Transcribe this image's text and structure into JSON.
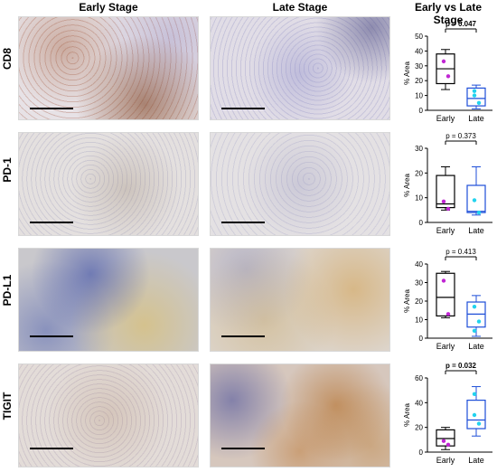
{
  "headers": {
    "early": "Early Stage",
    "late": "Late Stage",
    "comparison": "Early vs Late Stage"
  },
  "rows": [
    {
      "marker": "CD8"
    },
    {
      "marker": "PD-1"
    },
    {
      "marker": "PD-L1"
    },
    {
      "marker": "TIGIT"
    }
  ],
  "colors": {
    "early_points": "#c026d3",
    "late_points": "#22d3ee",
    "early_box": "#000000",
    "late_box": "#1d4ed8"
  },
  "chart_data": [
    {
      "type": "box",
      "marker": "CD8",
      "ylabel": "% Area",
      "ylim": [
        0,
        50
      ],
      "yticks": [
        0,
        10,
        20,
        30,
        40,
        50
      ],
      "categories": [
        "Early",
        "Late"
      ],
      "pvalue": "p = 0.047",
      "pvalue_bold": true,
      "boxes": [
        {
          "category": "Early",
          "min": 14,
          "q1": 18,
          "median": 28,
          "q3": 38,
          "max": 41,
          "points": [
            33,
            23
          ]
        },
        {
          "category": "Late",
          "min": 1,
          "q1": 3,
          "median": 8,
          "q3": 15,
          "max": 17,
          "points": [
            10,
            5,
            13
          ]
        }
      ]
    },
    {
      "type": "box",
      "marker": "PD-1",
      "ylabel": "% Area",
      "ylim": [
        0,
        30
      ],
      "yticks": [
        0,
        10,
        20,
        30
      ],
      "categories": [
        "Early",
        "Late"
      ],
      "pvalue": "p = 0.373",
      "pvalue_bold": false,
      "boxes": [
        {
          "category": "Early",
          "min": 5,
          "q1": 6,
          "median": 7.5,
          "q3": 19,
          "max": 22.5,
          "points": [
            8.5,
            5.5
          ]
        },
        {
          "category": "Late",
          "min": 3,
          "q1": 4,
          "median": 4.5,
          "q3": 15,
          "max": 22.5,
          "points": [
            9,
            4
          ]
        }
      ]
    },
    {
      "type": "box",
      "marker": "PD-L1",
      "ylabel": "% Area",
      "ylim": [
        0,
        40
      ],
      "yticks": [
        0,
        10,
        20,
        30,
        40
      ],
      "categories": [
        "Early",
        "Late"
      ],
      "pvalue": "p = 0.413",
      "pvalue_bold": false,
      "boxes": [
        {
          "category": "Early",
          "min": 11,
          "q1": 12,
          "median": 22,
          "q3": 35,
          "max": 36,
          "points": [
            31,
            13
          ]
        },
        {
          "category": "Late",
          "min": 1,
          "q1": 6,
          "median": 13,
          "q3": 19.5,
          "max": 23,
          "points": [
            17,
            9,
            4
          ]
        }
      ]
    },
    {
      "type": "box",
      "marker": "TIGIT",
      "ylabel": "% Area",
      "ylim": [
        0,
        60
      ],
      "yticks": [
        0,
        20,
        40,
        60
      ],
      "categories": [
        "Early",
        "Late"
      ],
      "pvalue": "p = 0.032",
      "pvalue_bold": true,
      "boxes": [
        {
          "category": "Early",
          "min": 2,
          "q1": 5,
          "median": 11,
          "q3": 18,
          "max": 20,
          "points": [
            9,
            6
          ]
        },
        {
          "category": "Late",
          "min": 13,
          "q1": 19,
          "median": 26,
          "q3": 42,
          "max": 53,
          "points": [
            30,
            23,
            47
          ]
        }
      ]
    }
  ]
}
